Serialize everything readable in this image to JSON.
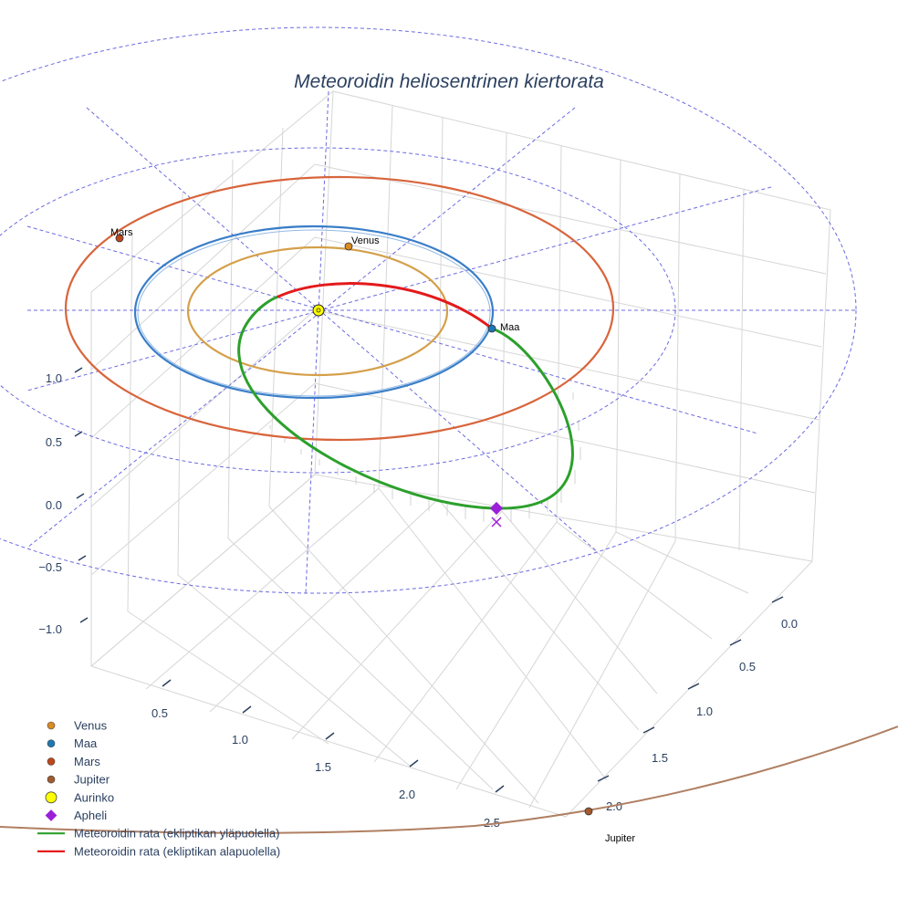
{
  "chart_data": {
    "type": "scatter3d",
    "title": "Meteoroidin heliosentrinen kiertorata",
    "axes": {
      "x_ticks": [
        "0.5",
        "1.0",
        "1.5",
        "2.0",
        "2.5"
      ],
      "y_ticks": [
        "0.0",
        "0.5",
        "1.0",
        "1.5",
        "2.0"
      ],
      "z_ticks": [
        "1.0",
        "0.5",
        "0.0",
        "−0.5",
        "−1.0"
      ],
      "grid": true
    },
    "bodies": [
      {
        "name": "Venus",
        "label": "Venus",
        "orbit_radius_au": 0.72,
        "color": "#d4a04a",
        "marker_color": "#d98c20"
      },
      {
        "name": "Maa",
        "label": "Maa",
        "orbit_radius_au": 1.0,
        "color": "#3a7ec8",
        "marker_color": "#1f77b4"
      },
      {
        "name": "Mars",
        "label": "Mars",
        "orbit_radius_au": 1.52,
        "color": "#d8653c",
        "marker_color": "#c0461a"
      },
      {
        "name": "Jupiter",
        "label": "Jupiter",
        "orbit_radius_au": 5.2,
        "color": "#b07f62",
        "marker_color": "#a25a2e"
      }
    ],
    "sun": {
      "name": "Aurinko",
      "color": "#ffff00"
    },
    "meteoroid": {
      "aphelion_marker": {
        "name": "Apheli",
        "color": "#9b1fd8"
      },
      "series": [
        {
          "name": "Meteoroidin rata (ekliptikan yläpuolella)",
          "color": "#2ca02c"
        },
        {
          "name": "Meteoroidin rata (ekliptikan alapuolella)",
          "color": "#e41a1c"
        }
      ]
    },
    "legend": {
      "position": "bottom-left",
      "items": [
        {
          "label": "Venus",
          "symbol": "dot",
          "color": "#d98c20"
        },
        {
          "label": "Maa",
          "symbol": "dot",
          "color": "#1f77b4"
        },
        {
          "label": "Mars",
          "symbol": "dot",
          "color": "#c0461a"
        },
        {
          "label": "Jupiter",
          "symbol": "dot",
          "color": "#a25a2e"
        },
        {
          "label": "Aurinko",
          "symbol": "bigdot",
          "color": "#ffff00"
        },
        {
          "label": "Apheli",
          "symbol": "diamond",
          "color": "#9b1fd8"
        },
        {
          "label": "Meteoroidin rata (ekliptikan yläpuolella)",
          "symbol": "line",
          "color": "#2ca02c"
        },
        {
          "label": "Meteoroidin rata (ekliptikan alapuolella)",
          "symbol": "line",
          "color": "#e41a1c"
        }
      ]
    }
  }
}
